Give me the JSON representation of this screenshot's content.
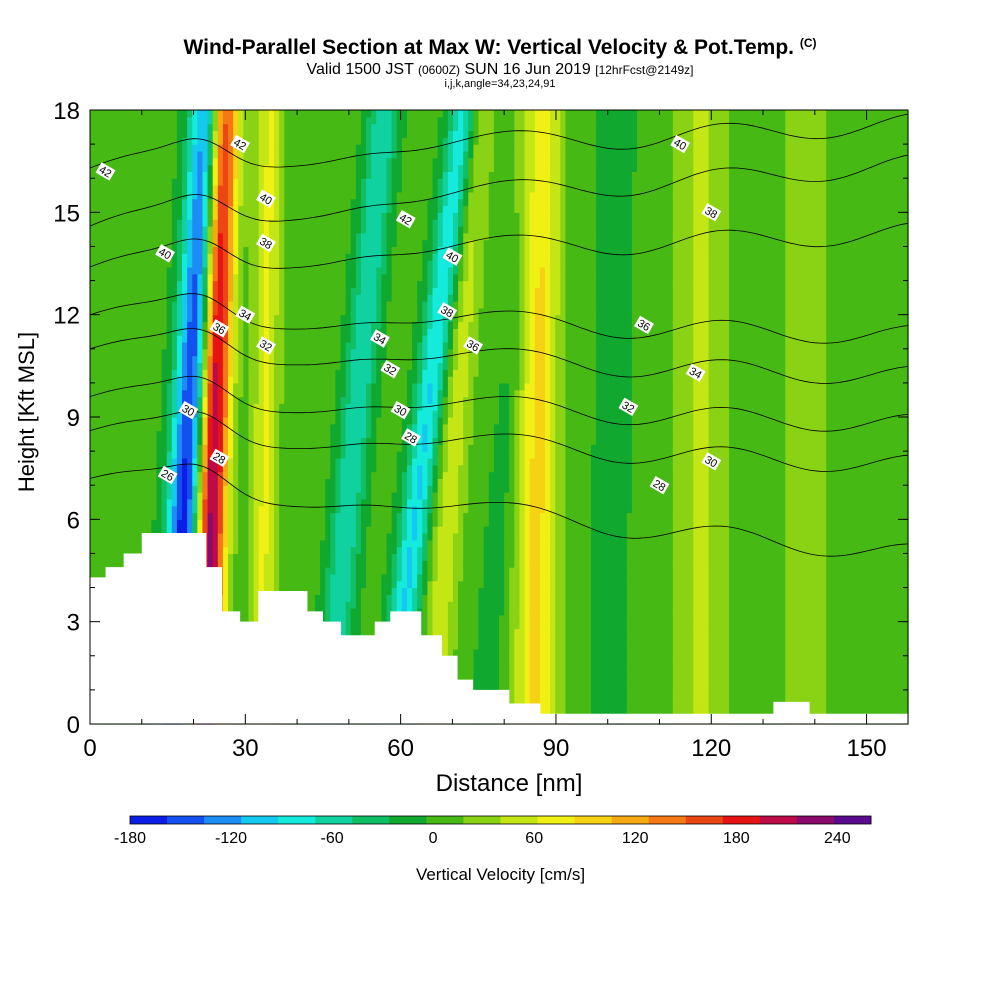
{
  "header": {
    "title": "Wind-Parallel Section at Max W: Vertical Velocity & Pot.Temp.",
    "copyright": "(C)",
    "valid_prefix": "Valid 1500 JST",
    "valid_utc": "(0600Z)",
    "valid_date": "SUN 16 Jun 2019",
    "forecast_info": "[12hrFcst@2149z]",
    "indices": "i,j,k,angle=34,23,24,91"
  },
  "colors": {
    "contour": "#000000",
    "terrain": "#ffffff",
    "scale": [
      "#0a1ee6",
      "#1450f0",
      "#1e8cf5",
      "#14c8f0",
      "#14ebdc",
      "#10d2a0",
      "#10be64",
      "#10a82e",
      "#46b914",
      "#8ad214",
      "#c3e614",
      "#f0f014",
      "#f5d214",
      "#f5aa14",
      "#f57814",
      "#eb4614",
      "#e61414",
      "#be0a46",
      "#8c0a6e",
      "#5a0a8c"
    ]
  },
  "chart_data": {
    "type": "heatmap",
    "xlabel": "Distance [nm]",
    "ylabel": "Height [Kft MSL]",
    "xlim": [
      0,
      158
    ],
    "ylim": [
      0,
      18
    ],
    "xticks": [
      "0",
      "30",
      "60",
      "90",
      "120",
      "150"
    ],
    "yticks": [
      "0",
      "3",
      "6",
      "9",
      "12",
      "15",
      "18"
    ],
    "colorbar": {
      "label": "Vertical Velocity [cm/s]",
      "min": -180,
      "max": 260,
      "step": 22,
      "tick_labels": [
        "-180",
        "-120",
        "-60",
        "0",
        "60",
        "120",
        "180",
        "240"
      ]
    },
    "velocity_bands": [
      {
        "x_base": 16,
        "slope": 0.4,
        "width": 3.5,
        "amp": -185
      },
      {
        "x_base": 22,
        "slope": 0.2,
        "width": 3.0,
        "amp": 240
      },
      {
        "x_base": 33,
        "slope": 0.1,
        "width": 2.5,
        "amp": 60
      },
      {
        "x_base": 46,
        "slope": 0.6,
        "width": 3.0,
        "amp": -75
      },
      {
        "x_base": 58,
        "slope": 0.8,
        "width": 3.0,
        "amp": -100
      },
      {
        "x_base": 66,
        "slope": 0.5,
        "width": 3.0,
        "amp": 50
      },
      {
        "x_base": 76,
        "slope": 0.55,
        "width": 3.0,
        "amp": -20
      },
      {
        "x_base": 86,
        "slope": 0.05,
        "width": 4.0,
        "amp": 85
      },
      {
        "x_base": 100,
        "slope": 0.1,
        "width": 5.0,
        "amp": -15
      },
      {
        "x_base": 118,
        "slope": 0.0,
        "width": 5.0,
        "amp": 40
      },
      {
        "x_base": 138,
        "slope": 0.0,
        "width": 5.0,
        "amp": 25
      }
    ],
    "velocity_background": 5,
    "theta_levels": [
      28,
      30,
      32,
      34,
      36,
      38,
      40,
      42
    ],
    "theta_contours": [
      {
        "label": "28",
        "y_left": 7.2,
        "y_right": 5.0
      },
      {
        "label": "30",
        "y_left": 8.6,
        "y_right": 7.6
      },
      {
        "label": "32",
        "y_left": 9.6,
        "y_right": 8.8
      },
      {
        "label": "34",
        "y_left": 11.0,
        "y_right": 10.2
      },
      {
        "label": "36",
        "y_left": 12.0,
        "y_right": 11.4
      },
      {
        "label": "38",
        "y_left": 13.4,
        "y_right": 14.4
      },
      {
        "label": "40",
        "y_left": 14.6,
        "y_right": 16.4
      },
      {
        "label": "42",
        "y_left": 16.3,
        "y_right": 17.6
      }
    ],
    "contour_labels": [
      {
        "text": "42",
        "x": 3,
        "y": 16.2
      },
      {
        "text": "42",
        "x": 29,
        "y": 17.0
      },
      {
        "text": "40",
        "x": 14.5,
        "y": 13.8
      },
      {
        "text": "40",
        "x": 34,
        "y": 15.4
      },
      {
        "text": "38",
        "x": 34,
        "y": 14.1
      },
      {
        "text": "34",
        "x": 30,
        "y": 12.0
      },
      {
        "text": "36",
        "x": 25,
        "y": 11.6
      },
      {
        "text": "32",
        "x": 34,
        "y": 11.1
      },
      {
        "text": "30",
        "x": 19,
        "y": 9.2
      },
      {
        "text": "28",
        "x": 25,
        "y": 7.8
      },
      {
        "text": "26",
        "x": 15,
        "y": 7.3
      },
      {
        "text": "42",
        "x": 61,
        "y": 14.8
      },
      {
        "text": "40",
        "x": 70,
        "y": 13.7
      },
      {
        "text": "38",
        "x": 69,
        "y": 12.1
      },
      {
        "text": "34",
        "x": 56,
        "y": 11.3
      },
      {
        "text": "32",
        "x": 58,
        "y": 10.4
      },
      {
        "text": "30",
        "x": 60,
        "y": 9.2
      },
      {
        "text": "28",
        "x": 62,
        "y": 8.4
      },
      {
        "text": "36",
        "x": 74,
        "y": 11.1
      },
      {
        "text": "40",
        "x": 114,
        "y": 17.0
      },
      {
        "text": "38",
        "x": 120,
        "y": 15.0
      },
      {
        "text": "36",
        "x": 107,
        "y": 11.7
      },
      {
        "text": "34",
        "x": 117,
        "y": 10.3
      },
      {
        "text": "32",
        "x": 104,
        "y": 9.3
      },
      {
        "text": "30",
        "x": 120,
        "y": 7.7
      },
      {
        "text": "28",
        "x": 110,
        "y": 7.0
      }
    ],
    "terrain": [
      {
        "x": 0,
        "h": 4.3
      },
      {
        "x": 3,
        "h": 4.6
      },
      {
        "x": 6.5,
        "h": 5.0
      },
      {
        "x": 10,
        "h": 5.6
      },
      {
        "x": 22.5,
        "h": 4.6
      },
      {
        "x": 25.5,
        "h": 3.3
      },
      {
        "x": 29,
        "h": 3.0
      },
      {
        "x": 32.5,
        "h": 3.9
      },
      {
        "x": 42,
        "h": 3.3
      },
      {
        "x": 45,
        "h": 3.0
      },
      {
        "x": 48.5,
        "h": 2.6
      },
      {
        "x": 55,
        "h": 3.0
      },
      {
        "x": 58,
        "h": 3.3
      },
      {
        "x": 64,
        "h": 2.6
      },
      {
        "x": 68,
        "h": 2.0
      },
      {
        "x": 71,
        "h": 1.3
      },
      {
        "x": 74,
        "h": 1.0
      },
      {
        "x": 81,
        "h": 0.6
      },
      {
        "x": 87,
        "h": 0.3
      },
      {
        "x": 132,
        "h": 0.65
      },
      {
        "x": 139,
        "h": 0.3
      },
      {
        "x": 158,
        "h": 0.3
      }
    ]
  }
}
